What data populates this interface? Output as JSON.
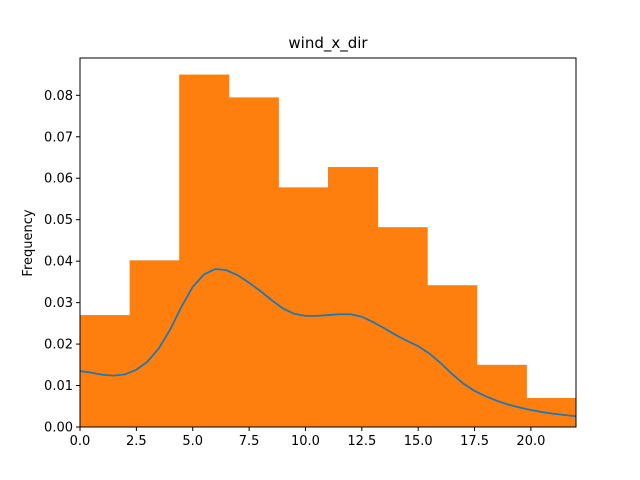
{
  "chart_data": {
    "type": "bar",
    "title": "wind_x_dir",
    "xlabel": "",
    "ylabel": "Frequency",
    "xlim": [
      0,
      22
    ],
    "ylim": [
      0,
      0.089
    ],
    "grid": false,
    "x_ticks": [
      0.0,
      2.5,
      5.0,
      7.5,
      10.0,
      12.5,
      15.0,
      17.5,
      20.0
    ],
    "x_tick_labels": [
      "0.0",
      "2.5",
      "5.0",
      "7.5",
      "10.0",
      "12.5",
      "15.0",
      "17.5",
      "20.0"
    ],
    "y_ticks": [
      0.0,
      0.01,
      0.02,
      0.03,
      0.04,
      0.05,
      0.06,
      0.07,
      0.08
    ],
    "y_tick_labels": [
      "0.00",
      "0.01",
      "0.02",
      "0.03",
      "0.04",
      "0.05",
      "0.06",
      "0.07",
      "0.08"
    ],
    "histogram": {
      "color": "#ff7f0e",
      "bins": [
        {
          "x0": 0.0,
          "x1": 2.2,
          "value": 0.027
        },
        {
          "x0": 2.2,
          "x1": 4.4,
          "value": 0.0402
        },
        {
          "x0": 4.4,
          "x1": 6.6,
          "value": 0.085
        },
        {
          "x0": 6.6,
          "x1": 8.8,
          "value": 0.0795
        },
        {
          "x0": 8.8,
          "x1": 11.0,
          "value": 0.0578
        },
        {
          "x0": 11.0,
          "x1": 13.2,
          "value": 0.0627
        },
        {
          "x0": 13.2,
          "x1": 15.4,
          "value": 0.0482
        },
        {
          "x0": 15.4,
          "x1": 17.6,
          "value": 0.0342
        },
        {
          "x0": 17.6,
          "x1": 19.8,
          "value": 0.015
        },
        {
          "x0": 19.8,
          "x1": 22.0,
          "value": 0.007
        }
      ]
    },
    "density_curve": {
      "color": "#1f77b4",
      "x": [
        0,
        0.5,
        1,
        1.5,
        2,
        2.5,
        3,
        3.5,
        4,
        4.5,
        5,
        5.5,
        6,
        6.5,
        7,
        7.5,
        8,
        8.5,
        9,
        9.5,
        10,
        10.5,
        11,
        11.5,
        12,
        12.5,
        13,
        13.5,
        14,
        14.5,
        15,
        15.5,
        16,
        16.5,
        17,
        17.5,
        18,
        18.5,
        19,
        19.5,
        20,
        20.5,
        21,
        21.5,
        22
      ],
      "y": [
        0.0135,
        0.0131,
        0.0126,
        0.0124,
        0.0127,
        0.0138,
        0.0158,
        0.019,
        0.0235,
        0.029,
        0.0338,
        0.0368,
        0.0381,
        0.0378,
        0.0366,
        0.0348,
        0.0328,
        0.0306,
        0.0286,
        0.0273,
        0.0268,
        0.0268,
        0.027,
        0.0272,
        0.0272,
        0.0266,
        0.0253,
        0.0238,
        0.0222,
        0.0208,
        0.0195,
        0.0177,
        0.0154,
        0.0128,
        0.0105,
        0.0087,
        0.0074,
        0.0063,
        0.0054,
        0.0047,
        0.0041,
        0.0036,
        0.0032,
        0.0029,
        0.0026
      ]
    }
  }
}
